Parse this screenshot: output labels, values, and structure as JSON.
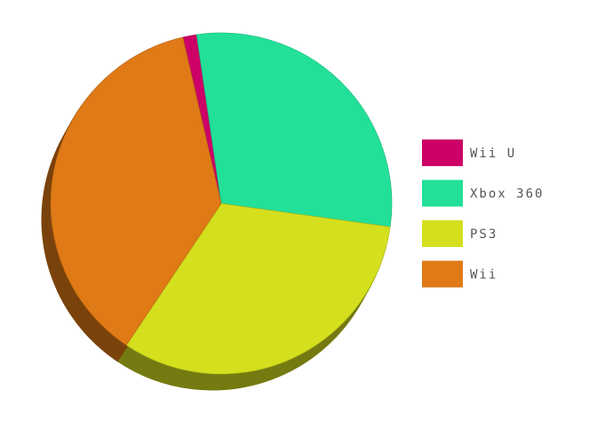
{
  "chart_data": {
    "type": "pie",
    "style": "3d",
    "legend_placement": "right",
    "slices": [
      {
        "label": "Wii U",
        "value": 1.3,
        "color": "#cc0066"
      },
      {
        "label": "Xbox 360",
        "value": 29.5,
        "color": "#22e098"
      },
      {
        "label": "PS3",
        "value": 32.2,
        "color": "#d4df1e"
      },
      {
        "label": "Wii",
        "value": 37.0,
        "color": "#df7a16"
      }
    ]
  }
}
